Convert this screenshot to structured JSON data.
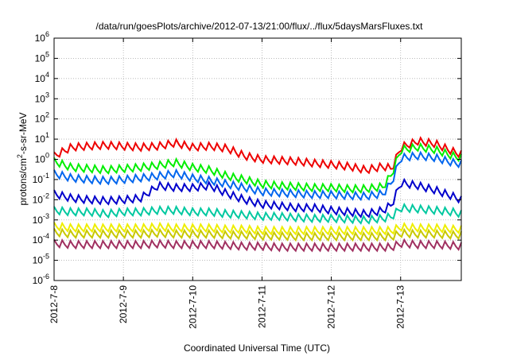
{
  "chart_data": {
    "type": "line",
    "title": "/data/run/goesPlots/archive/2012-07-13/21:00/flux/../flux/5daysMarsFluxes.txt",
    "xlabel": "Coordinated Universal Time (UTC)",
    "ylabel_prefix": "protons/cm",
    "ylabel_sup": "2",
    "ylabel_suffix": "-s-sr-MeV",
    "y_scale": "log",
    "ylim": [
      1e-06,
      1000000.0
    ],
    "y_ticks": [
      {
        "base": "10",
        "exp": "6",
        "value": 1000000.0
      },
      {
        "base": "10",
        "exp": "5",
        "value": 100000.0
      },
      {
        "base": "10",
        "exp": "4",
        "value": 10000.0
      },
      {
        "base": "10",
        "exp": "3",
        "value": 1000.0
      },
      {
        "base": "10",
        "exp": "2",
        "value": 100.0
      },
      {
        "base": "10",
        "exp": "1",
        "value": 10.0
      },
      {
        "base": "10",
        "exp": "0",
        "value": 1.0
      },
      {
        "base": "10",
        "exp": "-1",
        "value": 0.1
      },
      {
        "base": "10",
        "exp": "-2",
        "value": 0.01
      },
      {
        "base": "10",
        "exp": "-3",
        "value": 0.001
      },
      {
        "base": "10",
        "exp": "-4",
        "value": 0.0001
      },
      {
        "base": "10",
        "exp": "-5",
        "value": 1e-05
      },
      {
        "base": "10",
        "exp": "-6",
        "value": 1e-06
      }
    ],
    "xlim": [
      "2012-07-08",
      "2012-07-13 21:00"
    ],
    "x_ticks": [
      {
        "label": "2012-7-8",
        "value": "2012-07-08"
      },
      {
        "label": "2012-7-9",
        "value": "2012-07-09"
      },
      {
        "label": "2012-7-10",
        "value": "2012-07-10"
      },
      {
        "label": "2012-7-11",
        "value": "2012-07-11"
      },
      {
        "label": "2012-7-12",
        "value": "2012-07-12"
      },
      {
        "label": "2012-7-13",
        "value": "2012-07-13"
      }
    ],
    "grid": true,
    "legend": "none",
    "series": [
      {
        "color": "#ee0000",
        "values": [
          [
            "2012-07-08 00:00",
            1.5
          ],
          [
            "2012-07-08 06:00",
            4.0
          ],
          [
            "2012-07-08 12:00",
            4.5
          ],
          [
            "2012-07-08 18:00",
            5.0
          ],
          [
            "2012-07-09 00:00",
            4.5
          ],
          [
            "2012-07-09 06:00",
            4.0
          ],
          [
            "2012-07-09 12:00",
            4.5
          ],
          [
            "2012-07-09 18:00",
            6.5
          ],
          [
            "2012-07-10 00:00",
            4.0
          ],
          [
            "2012-07-10 06:00",
            4.5
          ],
          [
            "2012-07-10 12:00",
            3.5
          ],
          [
            "2012-07-10 18:00",
            1.5
          ],
          [
            "2012-07-11 00:00",
            1.0
          ],
          [
            "2012-07-11 06:00",
            0.9
          ],
          [
            "2012-07-11 12:00",
            0.8
          ],
          [
            "2012-07-11 18:00",
            0.65
          ],
          [
            "2012-07-12 00:00",
            0.55
          ],
          [
            "2012-07-12 06:00",
            0.45
          ],
          [
            "2012-07-12 12:00",
            0.3
          ],
          [
            "2012-07-12 18:00",
            0.45
          ],
          [
            "2012-07-12 21:00",
            0.35
          ],
          [
            "2012-07-13 00:00",
            4.0
          ],
          [
            "2012-07-13 06:00",
            8.0
          ],
          [
            "2012-07-13 12:00",
            6.0
          ],
          [
            "2012-07-13 18:00",
            2.5
          ],
          [
            "2012-07-13 21:00",
            1.8
          ]
        ]
      },
      {
        "color": "#00ee00",
        "values": [
          [
            "2012-07-08 00:00",
            0.8
          ],
          [
            "2012-07-08 06:00",
            0.4
          ],
          [
            "2012-07-08 12:00",
            0.35
          ],
          [
            "2012-07-08 18:00",
            0.3
          ],
          [
            "2012-07-09 00:00",
            0.35
          ],
          [
            "2012-07-09 06:00",
            0.4
          ],
          [
            "2012-07-09 12:00",
            0.5
          ],
          [
            "2012-07-09 18:00",
            0.7
          ],
          [
            "2012-07-10 00:00",
            0.4
          ],
          [
            "2012-07-10 06:00",
            0.3
          ],
          [
            "2012-07-10 12:00",
            0.15
          ],
          [
            "2012-07-10 18:00",
            0.1
          ],
          [
            "2012-07-11 00:00",
            0.06
          ],
          [
            "2012-07-11 06:00",
            0.05
          ],
          [
            "2012-07-11 12:00",
            0.045
          ],
          [
            "2012-07-11 18:00",
            0.04
          ],
          [
            "2012-07-12 00:00",
            0.04
          ],
          [
            "2012-07-12 06:00",
            0.035
          ],
          [
            "2012-07-12 12:00",
            0.035
          ],
          [
            "2012-07-12 18:00",
            0.045
          ],
          [
            "2012-07-12 21:00",
            0.2
          ],
          [
            "2012-07-13 00:00",
            3.0
          ],
          [
            "2012-07-13 06:00",
            4.0
          ],
          [
            "2012-07-13 12:00",
            3.0
          ],
          [
            "2012-07-13 18:00",
            1.5
          ],
          [
            "2012-07-13 21:00",
            1.2
          ]
        ]
      },
      {
        "color": "#0066ee",
        "values": [
          [
            "2012-07-08 00:00",
            0.2
          ],
          [
            "2012-07-08 06:00",
            0.12
          ],
          [
            "2012-07-08 12:00",
            0.1
          ],
          [
            "2012-07-08 18:00",
            0.09
          ],
          [
            "2012-07-09 00:00",
            0.1
          ],
          [
            "2012-07-09 06:00",
            0.12
          ],
          [
            "2012-07-09 12:00",
            0.15
          ],
          [
            "2012-07-09 18:00",
            0.2
          ],
          [
            "2012-07-10 00:00",
            0.12
          ],
          [
            "2012-07-10 06:00",
            0.09
          ],
          [
            "2012-07-10 12:00",
            0.06
          ],
          [
            "2012-07-10 18:00",
            0.04
          ],
          [
            "2012-07-11 00:00",
            0.025
          ],
          [
            "2012-07-11 06:00",
            0.022
          ],
          [
            "2012-07-11 12:00",
            0.02
          ],
          [
            "2012-07-11 18:00",
            0.018
          ],
          [
            "2012-07-12 00:00",
            0.018
          ],
          [
            "2012-07-12 06:00",
            0.016
          ],
          [
            "2012-07-12 12:00",
            0.015
          ],
          [
            "2012-07-12 18:00",
            0.02
          ],
          [
            "2012-07-12 21:00",
            0.08
          ],
          [
            "2012-07-13 00:00",
            1.2
          ],
          [
            "2012-07-13 06:00",
            1.5
          ],
          [
            "2012-07-13 12:00",
            1.2
          ],
          [
            "2012-07-13 18:00",
            0.7
          ],
          [
            "2012-07-13 21:00",
            0.6
          ]
        ]
      },
      {
        "color": "#0000cc",
        "values": [
          [
            "2012-07-08 00:00",
            0.02
          ],
          [
            "2012-07-08 06:00",
            0.012
          ],
          [
            "2012-07-08 12:00",
            0.01
          ],
          [
            "2012-07-08 18:00",
            0.009
          ],
          [
            "2012-07-09 00:00",
            0.01
          ],
          [
            "2012-07-09 06:00",
            0.012
          ],
          [
            "2012-07-09 12:00",
            0.05
          ],
          [
            "2012-07-09 18:00",
            0.04
          ],
          [
            "2012-07-10 00:00",
            0.04
          ],
          [
            "2012-07-10 06:00",
            0.05
          ],
          [
            "2012-07-10 12:00",
            0.02
          ],
          [
            "2012-07-10 18:00",
            0.01
          ],
          [
            "2012-07-11 00:00",
            0.006
          ],
          [
            "2012-07-11 06:00",
            0.005
          ],
          [
            "2012-07-11 12:00",
            0.004
          ],
          [
            "2012-07-11 18:00",
            0.004
          ],
          [
            "2012-07-12 00:00",
            0.003
          ],
          [
            "2012-07-12 06:00",
            0.0025
          ],
          [
            "2012-07-12 12:00",
            0.002
          ],
          [
            "2012-07-12 18:00",
            0.003
          ],
          [
            "2012-07-12 21:00",
            0.006
          ],
          [
            "2012-07-13 00:00",
            0.07
          ],
          [
            "2012-07-13 06:00",
            0.05
          ],
          [
            "2012-07-13 12:00",
            0.03
          ],
          [
            "2012-07-13 18:00",
            0.015
          ],
          [
            "2012-07-13 21:00",
            0.01
          ]
        ]
      },
      {
        "color": "#00c8a0",
        "values": [
          [
            "2012-07-08 00:00",
            0.003
          ],
          [
            "2012-07-08 06:00",
            0.0025
          ],
          [
            "2012-07-08 12:00",
            0.0025
          ],
          [
            "2012-07-08 18:00",
            0.002
          ],
          [
            "2012-07-09 00:00",
            0.0025
          ],
          [
            "2012-07-09 06:00",
            0.0025
          ],
          [
            "2012-07-09 12:00",
            0.003
          ],
          [
            "2012-07-09 18:00",
            0.003
          ],
          [
            "2012-07-10 00:00",
            0.0025
          ],
          [
            "2012-07-10 06:00",
            0.0025
          ],
          [
            "2012-07-10 12:00",
            0.002
          ],
          [
            "2012-07-10 18:00",
            0.0018
          ],
          [
            "2012-07-11 00:00",
            0.0015
          ],
          [
            "2012-07-11 06:00",
            0.0015
          ],
          [
            "2012-07-11 12:00",
            0.0013
          ],
          [
            "2012-07-11 18:00",
            0.0012
          ],
          [
            "2012-07-12 00:00",
            0.0012
          ],
          [
            "2012-07-12 06:00",
            0.0011
          ],
          [
            "2012-07-12 12:00",
            0.001
          ],
          [
            "2012-07-12 18:00",
            0.0012
          ],
          [
            "2012-07-12 21:00",
            0.0015
          ],
          [
            "2012-07-13 00:00",
            0.004
          ],
          [
            "2012-07-13 06:00",
            0.0035
          ],
          [
            "2012-07-13 12:00",
            0.003
          ],
          [
            "2012-07-13 18:00",
            0.0025
          ],
          [
            "2012-07-13 21:00",
            0.002
          ]
        ]
      },
      {
        "color": "#eeee00",
        "values": [
          [
            "2012-07-08 00:00",
            0.0005
          ],
          [
            "2012-07-08 06:00",
            0.0004
          ],
          [
            "2012-07-08 12:00",
            0.0004
          ],
          [
            "2012-07-08 18:00",
            0.0004
          ],
          [
            "2012-07-09 00:00",
            0.0004
          ],
          [
            "2012-07-09 06:00",
            0.0004
          ],
          [
            "2012-07-09 12:00",
            0.00045
          ],
          [
            "2012-07-09 18:00",
            0.0004
          ],
          [
            "2012-07-10 00:00",
            0.0004
          ],
          [
            "2012-07-10 06:00",
            0.0004
          ],
          [
            "2012-07-10 12:00",
            0.00035
          ],
          [
            "2012-07-10 18:00",
            0.00035
          ],
          [
            "2012-07-11 00:00",
            0.0003
          ],
          [
            "2012-07-11 06:00",
            0.0003
          ],
          [
            "2012-07-11 12:00",
            0.0003
          ],
          [
            "2012-07-11 18:00",
            0.0003
          ],
          [
            "2012-07-12 00:00",
            0.0003
          ],
          [
            "2012-07-12 06:00",
            0.0003
          ],
          [
            "2012-07-12 12:00",
            0.0003
          ],
          [
            "2012-07-12 18:00",
            0.0003
          ],
          [
            "2012-07-12 21:00",
            0.0003
          ],
          [
            "2012-07-13 00:00",
            0.00045
          ],
          [
            "2012-07-13 06:00",
            0.0004
          ],
          [
            "2012-07-13 12:00",
            0.0004
          ],
          [
            "2012-07-13 18:00",
            0.00035
          ],
          [
            "2012-07-13 21:00",
            0.00035
          ]
        ]
      },
      {
        "color": "#c8c800",
        "values": [
          [
            "2012-07-08 00:00",
            0.00025
          ],
          [
            "2012-07-08 06:00",
            0.0002
          ],
          [
            "2012-07-08 12:00",
            0.0002
          ],
          [
            "2012-07-08 18:00",
            0.0002
          ],
          [
            "2012-07-09 00:00",
            0.0002
          ],
          [
            "2012-07-09 06:00",
            0.0002
          ],
          [
            "2012-07-09 12:00",
            0.00022
          ],
          [
            "2012-07-09 18:00",
            0.0002
          ],
          [
            "2012-07-10 00:00",
            0.0002
          ],
          [
            "2012-07-10 06:00",
            0.0002
          ],
          [
            "2012-07-10 12:00",
            0.00018
          ],
          [
            "2012-07-10 18:00",
            0.00018
          ],
          [
            "2012-07-11 00:00",
            0.00016
          ],
          [
            "2012-07-11 06:00",
            0.00016
          ],
          [
            "2012-07-11 12:00",
            0.00015
          ],
          [
            "2012-07-11 18:00",
            0.00015
          ],
          [
            "2012-07-12 00:00",
            0.00015
          ],
          [
            "2012-07-12 06:00",
            0.00015
          ],
          [
            "2012-07-12 12:00",
            0.00015
          ],
          [
            "2012-07-12 18:00",
            0.00015
          ],
          [
            "2012-07-12 21:00",
            0.00015
          ],
          [
            "2012-07-13 00:00",
            0.00022
          ],
          [
            "2012-07-13 06:00",
            0.0002
          ],
          [
            "2012-07-13 12:00",
            0.0002
          ],
          [
            "2012-07-13 18:00",
            0.00018
          ],
          [
            "2012-07-13 21:00",
            0.00018
          ]
        ]
      },
      {
        "color": "#a03060",
        "values": [
          [
            "2012-07-08 00:00",
            7e-05
          ],
          [
            "2012-07-08 06:00",
            6e-05
          ],
          [
            "2012-07-08 12:00",
            6e-05
          ],
          [
            "2012-07-08 18:00",
            6e-05
          ],
          [
            "2012-07-09 00:00",
            6e-05
          ],
          [
            "2012-07-09 06:00",
            6e-05
          ],
          [
            "2012-07-09 12:00",
            6.5e-05
          ],
          [
            "2012-07-09 18:00",
            6e-05
          ],
          [
            "2012-07-10 00:00",
            6e-05
          ],
          [
            "2012-07-10 06:00",
            6e-05
          ],
          [
            "2012-07-10 12:00",
            5.5e-05
          ],
          [
            "2012-07-10 18:00",
            5e-05
          ],
          [
            "2012-07-11 00:00",
            5e-05
          ],
          [
            "2012-07-11 06:00",
            4.5e-05
          ],
          [
            "2012-07-11 12:00",
            4.5e-05
          ],
          [
            "2012-07-11 18:00",
            4.5e-05
          ],
          [
            "2012-07-12 00:00",
            4.5e-05
          ],
          [
            "2012-07-12 06:00",
            4.5e-05
          ],
          [
            "2012-07-12 12:00",
            4.5e-05
          ],
          [
            "2012-07-12 18:00",
            4.5e-05
          ],
          [
            "2012-07-12 21:00",
            4.5e-05
          ],
          [
            "2012-07-13 00:00",
            7e-05
          ],
          [
            "2012-07-13 06:00",
            6e-05
          ],
          [
            "2012-07-13 12:00",
            6e-05
          ],
          [
            "2012-07-13 18:00",
            5.5e-05
          ],
          [
            "2012-07-13 21:00",
            5e-05
          ]
        ]
      }
    ]
  }
}
